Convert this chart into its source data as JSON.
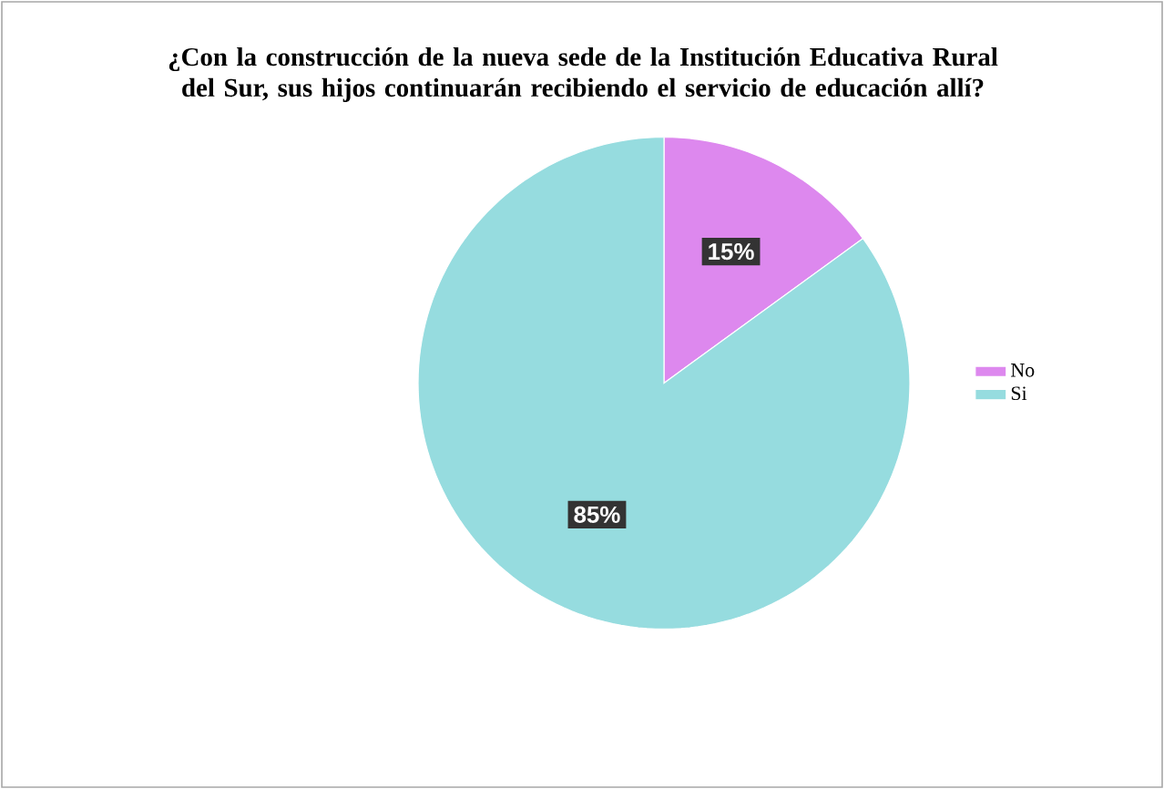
{
  "chart_data": {
    "type": "pie",
    "title": "¿Con la construcción de la nueva sede de la Institución Educativa Rural del Sur, sus hijos continuarán recibiendo el servicio de educación allí?",
    "categories": [
      "No",
      "Si"
    ],
    "values": [
      15,
      85
    ],
    "colors": [
      "#dd88ee",
      "#96dcdf"
    ],
    "value_labels": [
      "15%",
      "85%"
    ],
    "legend": "right"
  }
}
